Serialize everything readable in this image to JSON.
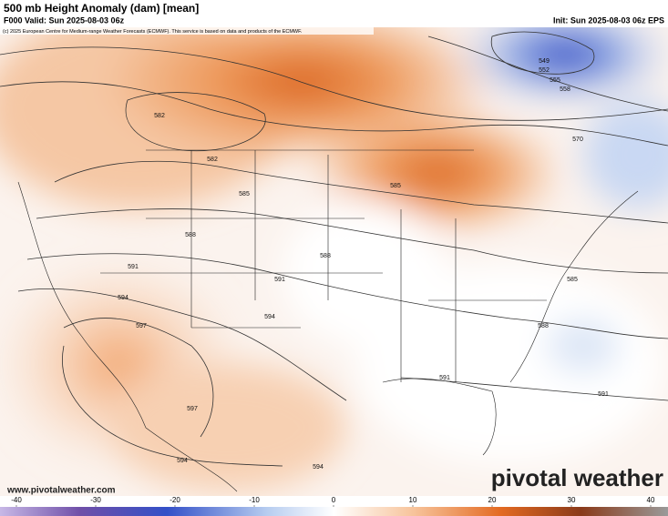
{
  "header": {
    "title": "500 mb Height Anomaly (dam) [mean]",
    "valid": "F000 Valid: Sun 2025-08-03 06z",
    "init": "Init: Sun 2025-08-03 06z EPS",
    "copyright": "(c) 2025 European Centre for Medium-range Weather Forecasts (ECMWF). This service is based on data and products of the ECMWF."
  },
  "contour_labels": [
    "582",
    "582",
    "585",
    "588",
    "591",
    "594",
    "597",
    "597",
    "594",
    "594",
    "591",
    "594",
    "588",
    "585",
    "591",
    "588",
    "585",
    "591",
    "570",
    "558",
    "555",
    "552",
    "549"
  ],
  "footer": {
    "website": "www.pivotalweather.com",
    "logo": "pivotal weather"
  },
  "colorbar": {
    "range": [
      -40,
      40
    ],
    "ticks": [
      -40,
      -30,
      -20,
      -10,
      0,
      10,
      20,
      30,
      40
    ]
  }
}
